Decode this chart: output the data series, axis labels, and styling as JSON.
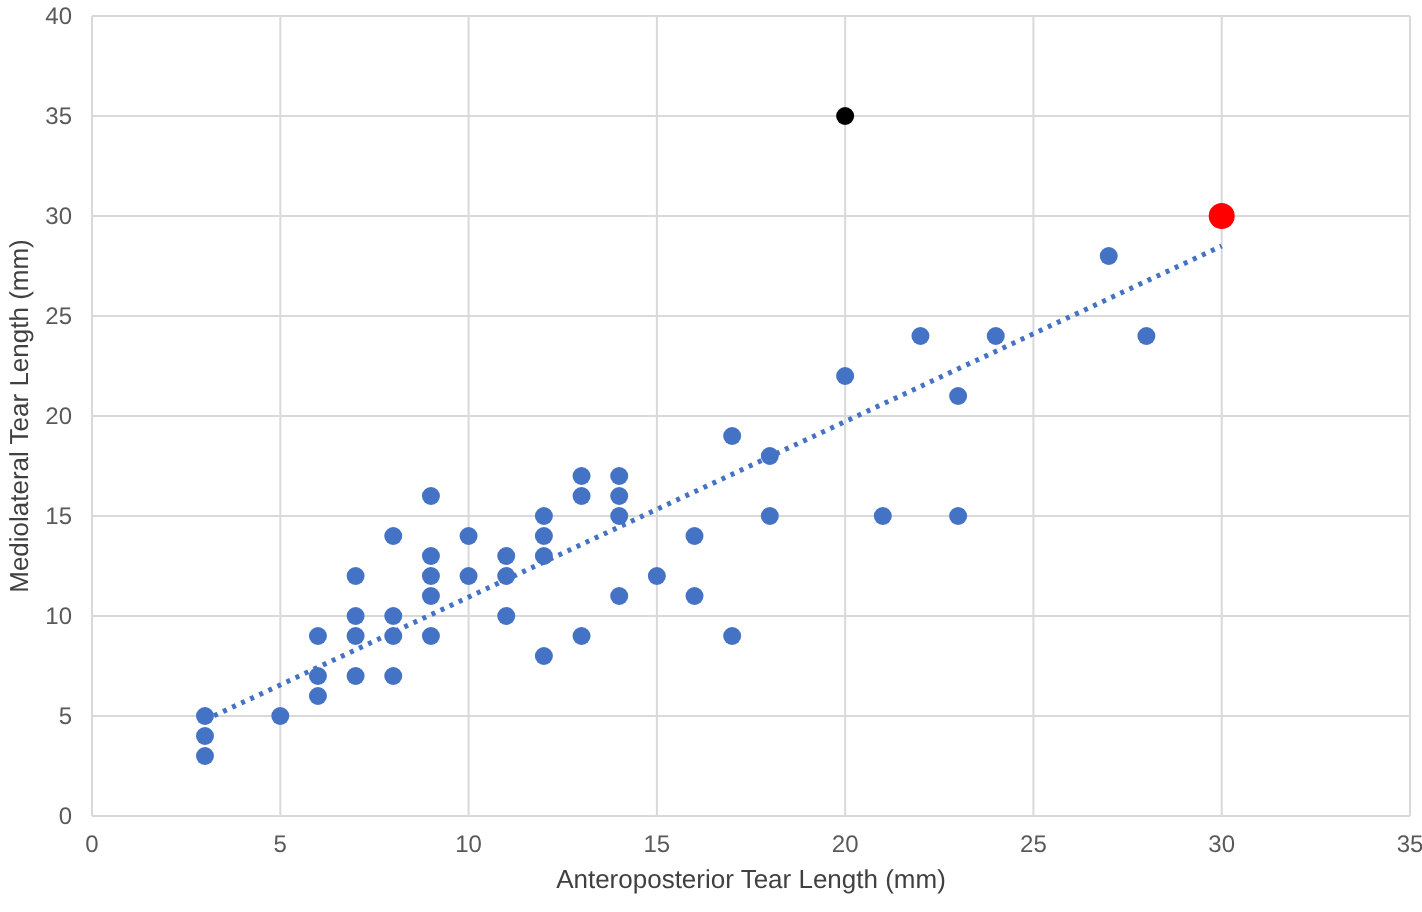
{
  "chart_data": {
    "type": "scatter",
    "xlabel": "Anteroposterior Tear Length (mm)",
    "ylabel": "Mediolateral Tear Length (mm)",
    "xlim": [
      0,
      35
    ],
    "xticks": [
      0,
      5,
      10,
      15,
      20,
      25,
      30,
      35
    ],
    "ylim": [
      0,
      40
    ],
    "yticks": [
      0,
      5,
      10,
      15,
      20,
      25,
      30,
      35,
      40
    ],
    "grid": true,
    "marker": "circle",
    "series": [
      {
        "color": "#4472c4",
        "x": [
          3,
          3,
          3,
          5,
          6,
          6,
          6,
          7,
          7,
          7,
          7,
          8,
          8,
          8,
          8,
          9,
          9,
          9,
          9,
          9,
          10,
          10,
          11,
          11,
          11,
          12,
          12,
          12,
          12,
          13,
          13,
          13,
          14,
          14,
          14,
          14,
          15,
          16,
          16,
          17,
          17,
          18,
          18,
          20,
          21,
          22,
          23,
          23,
          24,
          27,
          28
        ],
        "values": [
          5,
          4,
          3,
          5,
          9,
          7,
          6,
          12,
          10,
          9,
          7,
          14,
          10,
          9,
          7,
          16,
          13,
          12,
          11,
          9,
          14,
          12,
          13,
          12,
          10,
          15,
          14,
          13,
          8,
          17,
          16,
          9,
          17,
          16,
          15,
          11,
          12,
          14,
          11,
          19,
          9,
          18,
          15,
          22,
          15,
          24,
          21,
          15,
          24,
          28,
          24
        ]
      },
      {
        "color": "#000000",
        "x": [
          20
        ],
        "values": [
          35
        ]
      },
      {
        "color": "#ff0000",
        "x": [
          30
        ],
        "values": [
          30
        ]
      },
      {
        "type": "line",
        "color": "#4472c4",
        "line_style": "dotted",
        "marker": "none",
        "x": [
          3,
          30
        ],
        "values": [
          4.8,
          28.5
        ]
      }
    ]
  }
}
